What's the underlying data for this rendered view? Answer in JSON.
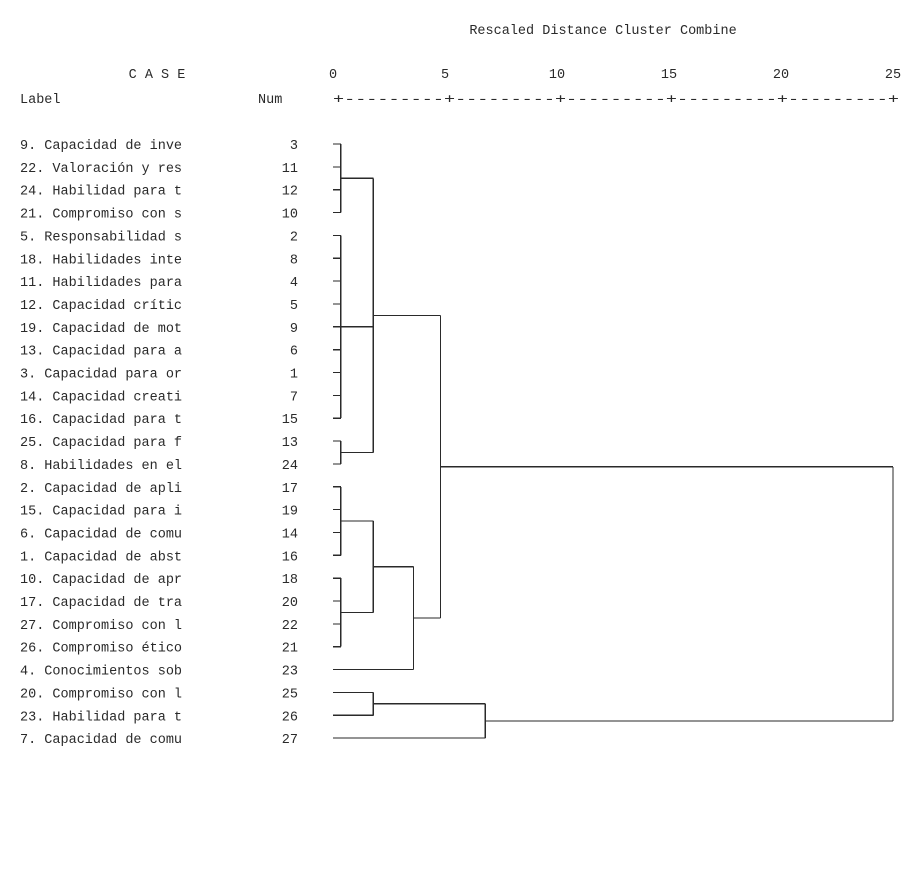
{
  "chart_data": {
    "type": "dendrogram",
    "title": "Rescaled Distance Cluster Combine",
    "case_header": "C A S E",
    "label_header": "Label",
    "num_header": "Num",
    "axis_ticks": [
      0,
      5,
      10,
      15,
      20,
      25
    ],
    "axis_rule": "+---------+---------+---------+---------+---------+",
    "axis_range": [
      0,
      25
    ],
    "leaves": [
      {
        "label": "9. Capacidad de inve",
        "num": "3"
      },
      {
        "label": "22. Valoración y res",
        "num": "11"
      },
      {
        "label": "24. Habilidad para t",
        "num": "12"
      },
      {
        "label": "21. Compromiso con s",
        "num": "10"
      },
      {
        "label": "5. Responsabilidad s",
        "num": "2"
      },
      {
        "label": "18. Habilidades inte",
        "num": "8"
      },
      {
        "label": "11. Habilidades para",
        "num": "4"
      },
      {
        "label": "12. Capacidad crític",
        "num": "5"
      },
      {
        "label": "19. Capacidad de mot",
        "num": "9"
      },
      {
        "label": "13. Capacidad para a",
        "num": "6"
      },
      {
        "label": "3. Capacidad para or",
        "num": "1"
      },
      {
        "label": "14. Capacidad creati",
        "num": "7"
      },
      {
        "label": "16. Capacidad para t",
        "num": "15"
      },
      {
        "label": "25. Capacidad para f",
        "num": "13"
      },
      {
        "label": "8. Habilidades en el",
        "num": "24"
      },
      {
        "label": "2. Capacidad de apli",
        "num": "17"
      },
      {
        "label": "15. Capacidad para i",
        "num": "19"
      },
      {
        "label": "6. Capacidad de comu",
        "num": "14"
      },
      {
        "label": "1. Capacidad de abst",
        "num": "16"
      },
      {
        "label": "10. Capacidad de apr",
        "num": "18"
      },
      {
        "label": "17. Capacidad de tra",
        "num": "20"
      },
      {
        "label": "27. Compromiso con l",
        "num": "22"
      },
      {
        "label": "26. Compromiso ético",
        "num": "21"
      },
      {
        "label": "4. Conocimientos sob",
        "num": "23"
      },
      {
        "label": "20. Compromiso con l",
        "num": "25"
      },
      {
        "label": "23. Habilidad para t",
        "num": "26"
      },
      {
        "label": "7. Capacidad de comu",
        "num": "27"
      }
    ],
    "merges": [
      {
        "id": "A",
        "children": [
          0,
          1,
          2,
          3
        ],
        "height": 0.35
      },
      {
        "id": "B",
        "children": [
          4,
          5,
          6,
          7,
          8,
          9,
          10,
          11,
          12
        ],
        "height": 0.35
      },
      {
        "id": "C",
        "children": [
          13,
          14
        ],
        "height": 0.35
      },
      {
        "id": "D",
        "children": [
          "A",
          "B",
          "C"
        ],
        "height": 1.8
      },
      {
        "id": "E",
        "children": [
          15,
          16,
          17,
          18
        ],
        "height": 0.35
      },
      {
        "id": "F",
        "children": [
          19,
          20,
          21,
          22
        ],
        "height": 0.35
      },
      {
        "id": "G",
        "children": [
          "E",
          "F"
        ],
        "height": 1.8
      },
      {
        "id": "H",
        "children": [
          "G",
          23
        ],
        "height": 3.6
      },
      {
        "id": "I",
        "children": [
          "D",
          "H"
        ],
        "height": 4.8
      },
      {
        "id": "J",
        "children": [
          24,
          25
        ],
        "height": 1.8
      },
      {
        "id": "K",
        "children": [
          "J",
          26
        ],
        "height": 6.8
      },
      {
        "id": "L",
        "children": [
          "I",
          "K"
        ],
        "height": 25
      }
    ]
  }
}
